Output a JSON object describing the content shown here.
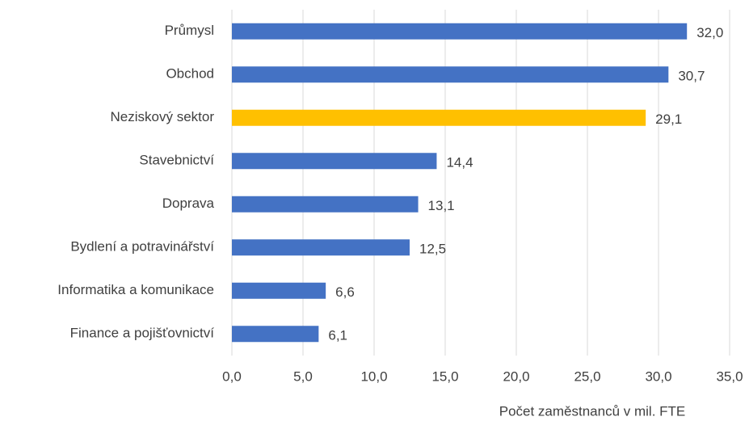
{
  "chart_data": {
    "type": "hbar",
    "x_label": "Počet zaměstnanců v mil. FTE",
    "categories": [
      "Průmysl",
      "Obchod",
      "Neziskový sektor",
      "Stavebnictví",
      "Doprava",
      "Bydlení a potravinářství",
      "Informatika a komunikace",
      "Finance a pojišťovnictví"
    ],
    "values": [
      32.0,
      30.7,
      29.1,
      14.4,
      13.1,
      12.5,
      6.6,
      6.1
    ],
    "value_labels": [
      "32,0",
      "30,7",
      "29,1",
      "14,4",
      "13,1",
      "12,5",
      "6,6",
      "6,1"
    ],
    "colors": [
      "#4472c4",
      "#4472c4",
      "#ffc000",
      "#4472c4",
      "#4472c4",
      "#4472c4",
      "#4472c4",
      "#4472c4"
    ],
    "xlim": [
      0,
      35
    ],
    "xticks": [
      {
        "value": 0,
        "label": "0,0"
      },
      {
        "value": 5,
        "label": "5,0"
      },
      {
        "value": 10,
        "label": "10,0"
      },
      {
        "value": 15,
        "label": "15,0"
      },
      {
        "value": 20,
        "label": "20,0"
      },
      {
        "value": 25,
        "label": "25,0"
      },
      {
        "value": 30,
        "label": "30,0"
      },
      {
        "value": 35,
        "label": "35,0"
      }
    ],
    "grid": true
  }
}
